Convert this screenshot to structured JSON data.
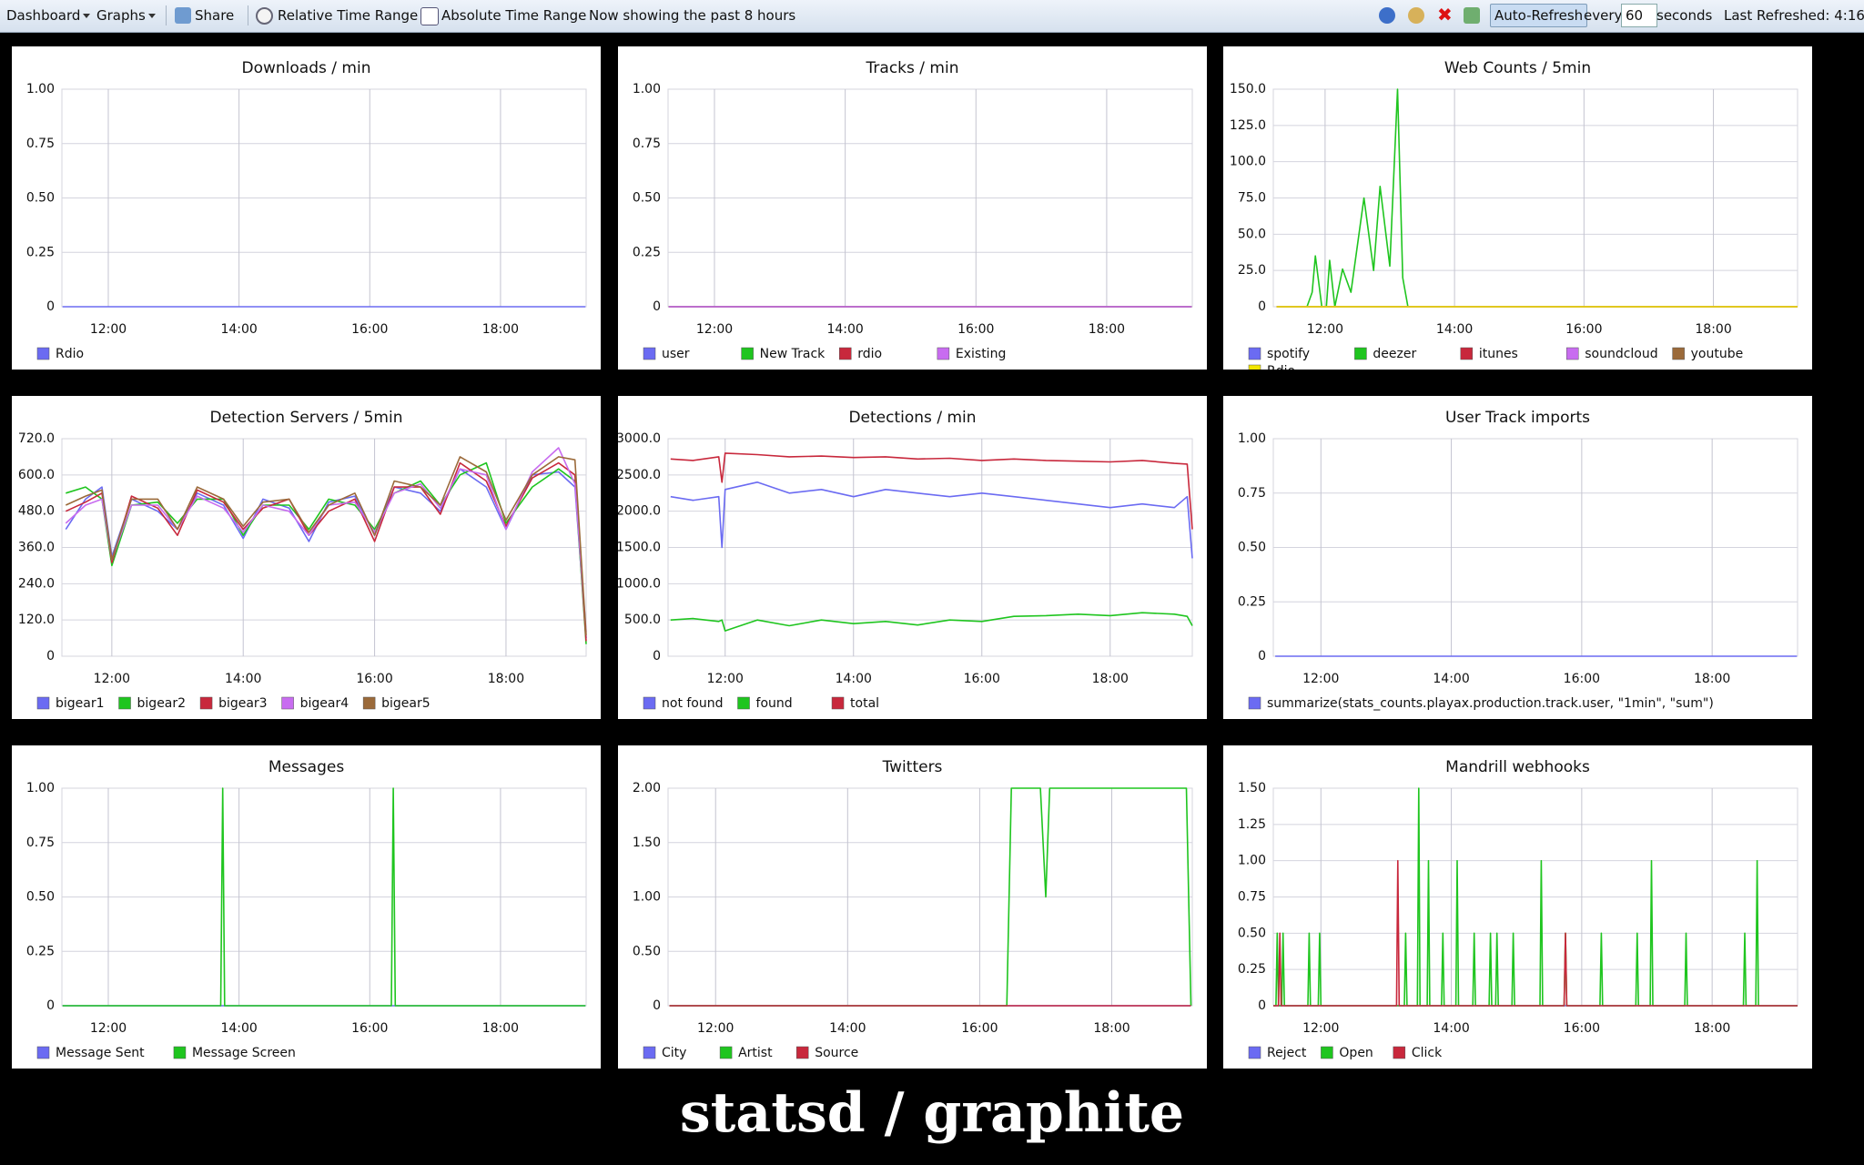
{
  "toolbar": {
    "dashboard_menu": "Dashboard",
    "graphs_menu": "Graphs",
    "share": "Share",
    "relative_time_range": "Relative Time Range",
    "absolute_time_range": "Absolute Time Range",
    "status": "Now showing the past 8 hours",
    "auto_refresh": "Auto-Refresh",
    "every": "every",
    "refresh_interval": 60,
    "seconds": "seconds",
    "last_refreshed": "Last Refreshed: 4:16"
  },
  "caption": "statsd / graphite",
  "chart_data": [
    {
      "type": "line",
      "title": "Downloads / min",
      "grid": true,
      "xlim": [
        11.29,
        19.31
      ],
      "xticks": [
        {
          "value": 12,
          "label": "12:00"
        },
        {
          "value": 14,
          "label": "14:00"
        },
        {
          "value": 16,
          "label": "16:00"
        },
        {
          "value": 18,
          "label": "18:00"
        }
      ],
      "ylim": [
        0,
        1
      ],
      "yticks": [
        0,
        0.25,
        {
          "value": 0.5,
          "label": "0.50"
        },
        0.75,
        {
          "value": 1,
          "label": "1.00"
        }
      ],
      "x": [
        11.3,
        19.3
      ],
      "series": [
        {
          "name": "Rdio",
          "color": "#6b6bf2",
          "values": [
            0,
            0
          ]
        }
      ]
    },
    {
      "type": "line",
      "title": "Tracks / min",
      "grid": true,
      "xlim": [
        11.29,
        19.31
      ],
      "xticks": [
        {
          "value": 12,
          "label": "12:00"
        },
        {
          "value": 14,
          "label": "14:00"
        },
        {
          "value": 16,
          "label": "16:00"
        },
        {
          "value": 18,
          "label": "18:00"
        }
      ],
      "ylim": [
        0,
        1
      ],
      "yticks": [
        0,
        0.25,
        {
          "value": 0.5,
          "label": "0.50"
        },
        0.75,
        {
          "value": 1,
          "label": "1.00"
        }
      ],
      "x": [
        11.3,
        19.3
      ],
      "series": [
        {
          "name": "user",
          "color": "#6b6bf2",
          "values": [
            0,
            0
          ]
        },
        {
          "name": "New Track",
          "color": "#1fc51f",
          "values": [
            0,
            0
          ]
        },
        {
          "name": "rdio",
          "color": "#c8283c",
          "values": [
            0,
            0
          ]
        },
        {
          "name": "Existing",
          "color": "#c86cf0",
          "values": [
            0,
            0
          ]
        }
      ]
    },
    {
      "type": "line",
      "title": "Web Counts / 5min",
      "grid": true,
      "xlim": [
        11.2,
        19.3
      ],
      "xticks": [
        {
          "value": 12,
          "label": "12:00"
        },
        {
          "value": 14,
          "label": "14:00"
        },
        {
          "value": 16,
          "label": "16:00"
        },
        {
          "value": 18,
          "label": "18:00"
        }
      ],
      "ylim": [
        0,
        150
      ],
      "yticks": [
        0,
        {
          "value": 25,
          "label": "25.0"
        },
        {
          "value": 50,
          "label": "50.0"
        },
        {
          "value": 75,
          "label": "75.0"
        },
        {
          "value": 100,
          "label": "100.0"
        },
        {
          "value": 125,
          "label": "125.0"
        },
        {
          "value": 150,
          "label": "150.0"
        }
      ],
      "x": [
        11.25,
        19.3
      ],
      "series": [
        {
          "name": "spotify",
          "color": "#6b6bf2",
          "values": [
            0,
            0
          ]
        },
        {
          "name": "deezer",
          "color": "#1fc51f",
          "x": [
            11.72,
            11.8,
            11.85,
            11.95,
            12.02,
            12.07,
            12.15,
            12.27,
            12.4,
            12.6,
            12.75,
            12.85,
            13.0,
            13.12,
            13.2,
            13.28
          ],
          "values": [
            0,
            10,
            35,
            0,
            0,
            32,
            0,
            26,
            10,
            75,
            25,
            83,
            28,
            150,
            20,
            0
          ]
        },
        {
          "name": "itunes",
          "color": "#c8283c",
          "values": [
            0,
            0
          ]
        },
        {
          "name": "soundcloud",
          "color": "#c86cf0",
          "values": [
            0,
            0
          ]
        },
        {
          "name": "youtube",
          "color": "#9b6a3a",
          "values": [
            0,
            0
          ]
        },
        {
          "name": "Rdio",
          "color": "#f2e600",
          "values": [
            0,
            0
          ]
        }
      ]
    },
    {
      "type": "line",
      "title": "Detection Servers / 5min",
      "grid": true,
      "xlim": [
        11.24,
        19.22
      ],
      "xticks": [
        {
          "value": 12,
          "label": "12:00"
        },
        {
          "value": 14,
          "label": "14:00"
        },
        {
          "value": 16,
          "label": "16:00"
        },
        {
          "value": 18,
          "label": "18:00"
        }
      ],
      "ylim": [
        0,
        720
      ],
      "yticks": [
        0,
        {
          "value": 120,
          "label": "120.0"
        },
        {
          "value": 240,
          "label": "240.0"
        },
        {
          "value": 360,
          "label": "360.0"
        },
        {
          "value": 480,
          "label": "480.0"
        },
        {
          "value": 600,
          "label": "600.0"
        },
        {
          "value": 720,
          "label": "720.0"
        }
      ],
      "x": [
        11.3,
        11.6,
        11.85,
        12.0,
        12.3,
        12.7,
        13.0,
        13.3,
        13.7,
        14.0,
        14.3,
        14.7,
        15.0,
        15.3,
        15.7,
        16.0,
        16.3,
        16.7,
        17.0,
        17.3,
        17.7,
        18.0,
        18.4,
        18.8,
        19.05,
        19.22
      ],
      "series": [
        {
          "name": "bigear1",
          "color": "#6b6bf2",
          "values": [
            420,
            520,
            560,
            330,
            520,
            480,
            420,
            540,
            500,
            390,
            520,
            490,
            380,
            510,
            530,
            400,
            560,
            540,
            480,
            620,
            560,
            420,
            600,
            610,
            560,
            60
          ]
        },
        {
          "name": "bigear2",
          "color": "#1fc51f",
          "values": [
            540,
            560,
            520,
            300,
            500,
            510,
            440,
            520,
            520,
            400,
            500,
            500,
            420,
            520,
            500,
            420,
            540,
            580,
            500,
            600,
            640,
            440,
            560,
            620,
            580,
            40
          ]
        },
        {
          "name": "bigear3",
          "color": "#c8283c",
          "values": [
            480,
            510,
            540,
            310,
            530,
            490,
            400,
            550,
            510,
            420,
            490,
            520,
            400,
            480,
            520,
            380,
            560,
            560,
            470,
            640,
            580,
            430,
            590,
            640,
            600,
            50
          ]
        },
        {
          "name": "bigear4",
          "color": "#c86cf0",
          "values": [
            440,
            500,
            520,
            320,
            500,
            500,
            420,
            530,
            490,
            410,
            500,
            480,
            400,
            500,
            510,
            410,
            540,
            570,
            490,
            620,
            600,
            420,
            610,
            690,
            570,
            80
          ]
        },
        {
          "name": "bigear5",
          "color": "#9b6a3a",
          "values": [
            500,
            530,
            550,
            320,
            520,
            520,
            420,
            560,
            520,
            430,
            510,
            520,
            410,
            500,
            540,
            400,
            580,
            560,
            500,
            660,
            610,
            450,
            600,
            660,
            650,
            70
          ]
        }
      ]
    },
    {
      "type": "line",
      "title": "Detections / min",
      "grid": true,
      "xlim": [
        11.11,
        19.28
      ],
      "xticks": [
        {
          "value": 12,
          "label": "12:00"
        },
        {
          "value": 14,
          "label": "14:00"
        },
        {
          "value": 16,
          "label": "16:00"
        },
        {
          "value": 18,
          "label": "18:00"
        }
      ],
      "ylim": [
        0,
        3000
      ],
      "yticks": [
        0,
        {
          "value": 500,
          "label": "500.0"
        },
        {
          "value": 1000,
          "label": "1000.0"
        },
        {
          "value": 1500,
          "label": "1500.0"
        },
        {
          "value": 2000,
          "label": "2000.0"
        },
        {
          "value": 2500,
          "label": "2500.0"
        },
        {
          "value": 3000,
          "label": "3000.0"
        }
      ],
      "x": [
        11.15,
        11.5,
        11.9,
        11.95,
        12.0,
        12.5,
        13.0,
        13.5,
        14.0,
        14.5,
        15.0,
        15.5,
        16.0,
        16.5,
        17.0,
        17.5,
        18.0,
        18.5,
        19.0,
        19.2,
        19.28
      ],
      "series": [
        {
          "name": "not found",
          "color": "#6b6bf2",
          "values": [
            2200,
            2150,
            2200,
            1500,
            2300,
            2400,
            2250,
            2300,
            2200,
            2300,
            2250,
            2200,
            2250,
            2200,
            2150,
            2100,
            2050,
            2100,
            2050,
            2200,
            1350
          ]
        },
        {
          "name": "found",
          "color": "#1fc51f",
          "values": [
            500,
            520,
            480,
            500,
            350,
            500,
            420,
            500,
            450,
            480,
            430,
            500,
            480,
            550,
            560,
            580,
            560,
            600,
            580,
            550,
            420
          ]
        },
        {
          "name": "total",
          "color": "#c8283c",
          "values": [
            2720,
            2700,
            2750,
            2400,
            2800,
            2780,
            2750,
            2760,
            2740,
            2750,
            2720,
            2730,
            2700,
            2720,
            2700,
            2690,
            2680,
            2700,
            2660,
            2650,
            1750
          ]
        }
      ]
    },
    {
      "type": "line",
      "title": "User Track imports",
      "grid": true,
      "xlim": [
        11.27,
        19.31
      ],
      "xticks": [
        {
          "value": 12,
          "label": "12:00"
        },
        {
          "value": 14,
          "label": "14:00"
        },
        {
          "value": 16,
          "label": "16:00"
        },
        {
          "value": 18,
          "label": "18:00"
        }
      ],
      "ylim": [
        0,
        1
      ],
      "yticks": [
        0,
        0.25,
        {
          "value": 0.5,
          "label": "0.50"
        },
        0.75,
        {
          "value": 1,
          "label": "1.00"
        }
      ],
      "x": [
        11.3,
        19.3
      ],
      "series": [
        {
          "name": "summarize(stats_counts.playax.production.track.user, \"1min\", \"sum\")",
          "color": "#6b6bf2",
          "values": [
            0,
            0
          ]
        }
      ]
    },
    {
      "type": "line",
      "title": "Messages",
      "grid": true,
      "xlim": [
        11.29,
        19.31
      ],
      "xticks": [
        {
          "value": 12,
          "label": "12:00"
        },
        {
          "value": 14,
          "label": "14:00"
        },
        {
          "value": 16,
          "label": "16:00"
        },
        {
          "value": 18,
          "label": "18:00"
        }
      ],
      "ylim": [
        0,
        1
      ],
      "yticks": [
        0,
        0.25,
        {
          "value": 0.5,
          "label": "0.50"
        },
        0.75,
        {
          "value": 1,
          "label": "1.00"
        }
      ],
      "x": [
        11.3,
        19.3
      ],
      "series": [
        {
          "name": "Message Sent",
          "color": "#6b6bf2",
          "values": [
            0,
            0
          ]
        },
        {
          "name": "Message Screen",
          "color": "#1fc51f",
          "x": [
            11.3,
            13.72,
            13.75,
            13.78,
            16.33,
            16.36,
            16.39,
            19.3
          ],
          "values": [
            0,
            0,
            1,
            0,
            0,
            1,
            0,
            0
          ]
        }
      ]
    },
    {
      "type": "line",
      "title": "Twitters",
      "grid": true,
      "xlim": [
        11.28,
        19.22
      ],
      "xticks": [
        {
          "value": 12,
          "label": "12:00"
        },
        {
          "value": 14,
          "label": "14:00"
        },
        {
          "value": 16,
          "label": "16:00"
        },
        {
          "value": 18,
          "label": "18:00"
        }
      ],
      "ylim": [
        0,
        2
      ],
      "yticks": [
        0,
        {
          "value": 0.5,
          "label": "0.50"
        },
        {
          "value": 1,
          "label": "1.00"
        },
        {
          "value": 1.5,
          "label": "1.50"
        },
        {
          "value": 2,
          "label": "2.00"
        }
      ],
      "x": [
        11.3,
        19.2
      ],
      "series": [
        {
          "name": "City",
          "color": "#6b6bf2",
          "values": [
            0,
            0
          ]
        },
        {
          "name": "Artist",
          "color": "#1fc51f",
          "x": [
            11.3,
            16.41,
            16.48,
            16.92,
            17.0,
            17.06,
            19.13,
            19.2
          ],
          "values": [
            0,
            0,
            2,
            2,
            1,
            2,
            2,
            0
          ]
        },
        {
          "name": "Source",
          "color": "#c8283c",
          "values": [
            0,
            0
          ]
        }
      ]
    },
    {
      "type": "line",
      "title": "Mandrill webhooks",
      "grid": true,
      "xlim": [
        11.27,
        19.31
      ],
      "xticks": [
        {
          "value": 12,
          "label": "12:00"
        },
        {
          "value": 14,
          "label": "14:00"
        },
        {
          "value": 16,
          "label": "16:00"
        },
        {
          "value": 18,
          "label": "18:00"
        }
      ],
      "ylim": [
        0,
        1.5
      ],
      "yticks": [
        0,
        0.25,
        {
          "value": 0.5,
          "label": "0.50"
        },
        0.75,
        {
          "value": 1,
          "label": "1.00"
        },
        1.25,
        {
          "value": 1.5,
          "label": "1.50"
        }
      ],
      "x": [
        11.27,
        19.31
      ],
      "series": [
        {
          "name": "Reject",
          "color": "#6b6bf2",
          "values": [
            0,
            0
          ]
        },
        {
          "name": "Open",
          "color": "#1fc51f",
          "x": [
            11.27,
            11.31,
            11.33,
            11.35,
            11.4,
            11.42,
            11.44,
            11.8,
            11.82,
            11.84,
            11.96,
            11.98,
            12.0,
            13.28,
            13.3,
            13.32,
            13.48,
            13.5,
            13.52,
            13.63,
            13.65,
            13.67,
            13.85,
            13.87,
            13.89,
            14.07,
            14.09,
            14.11,
            14.33,
            14.35,
            14.37,
            14.58,
            14.6,
            14.62,
            14.68,
            14.7,
            14.72,
            14.93,
            14.95,
            14.97,
            15.36,
            15.38,
            15.4,
            15.73,
            15.75,
            15.77,
            16.28,
            16.3,
            16.32,
            16.83,
            16.85,
            16.87,
            17.05,
            17.07,
            17.09,
            17.58,
            17.6,
            17.62,
            18.48,
            18.5,
            18.52,
            18.67,
            18.69,
            18.71,
            19.31
          ],
          "values": [
            0,
            0,
            0.5,
            0,
            0,
            0.5,
            0,
            0,
            0.5,
            0,
            0,
            0.5,
            0,
            0,
            0.5,
            0,
            0,
            1.5,
            0,
            0,
            1,
            0,
            0,
            0.5,
            0,
            0,
            1,
            0,
            0,
            0.5,
            0,
            0,
            0.5,
            0,
            0,
            0.5,
            0,
            0,
            0.5,
            0,
            0,
            1,
            0,
            0,
            0.5,
            0,
            0,
            0.5,
            0,
            0,
            0.5,
            0,
            0,
            1,
            0,
            0,
            0.5,
            0,
            0,
            0.5,
            0,
            0,
            1,
            0,
            0
          ]
        },
        {
          "name": "Click",
          "color": "#c8283c",
          "x": [
            11.27,
            11.35,
            11.37,
            11.39,
            13.16,
            13.18,
            13.2,
            15.73,
            15.75,
            15.77,
            19.31
          ],
          "values": [
            0,
            0,
            0.5,
            0,
            0,
            1,
            0,
            0,
            0.5,
            0,
            0
          ]
        }
      ]
    }
  ]
}
